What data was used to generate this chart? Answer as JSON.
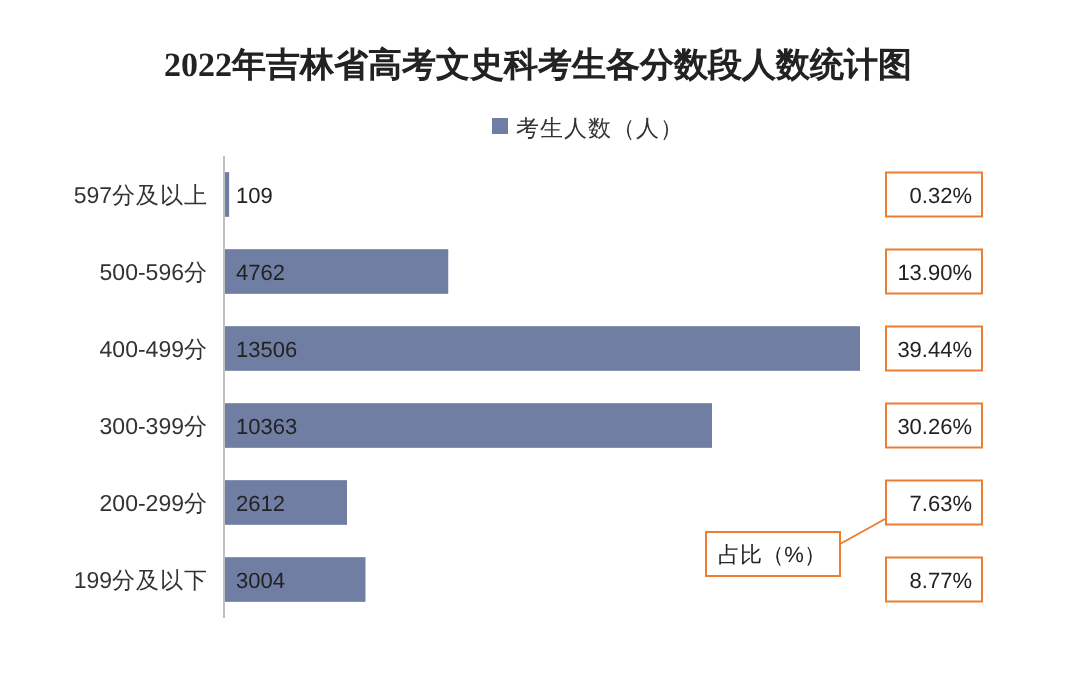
{
  "chart_data": {
    "type": "bar",
    "orientation": "horizontal",
    "title": "2022年吉林省高考文史科考生各分数段人数统计图",
    "categories": [
      "597分及以上",
      "500-596分",
      "400-499分",
      "300-399分",
      "200-299分",
      "199分及以下"
    ],
    "series": [
      {
        "name": "考生人数（人）",
        "color": "#707ea3",
        "values": [
          109,
          4762,
          13506,
          10363,
          2612,
          3004
        ]
      }
    ],
    "data_labels": true,
    "legend": "top",
    "annotations": [
      "0.32%",
      "13.90%",
      "39.44%",
      "30.26%",
      "7.63%",
      "8.77%",
      "占比（%）"
    ]
  }
}
